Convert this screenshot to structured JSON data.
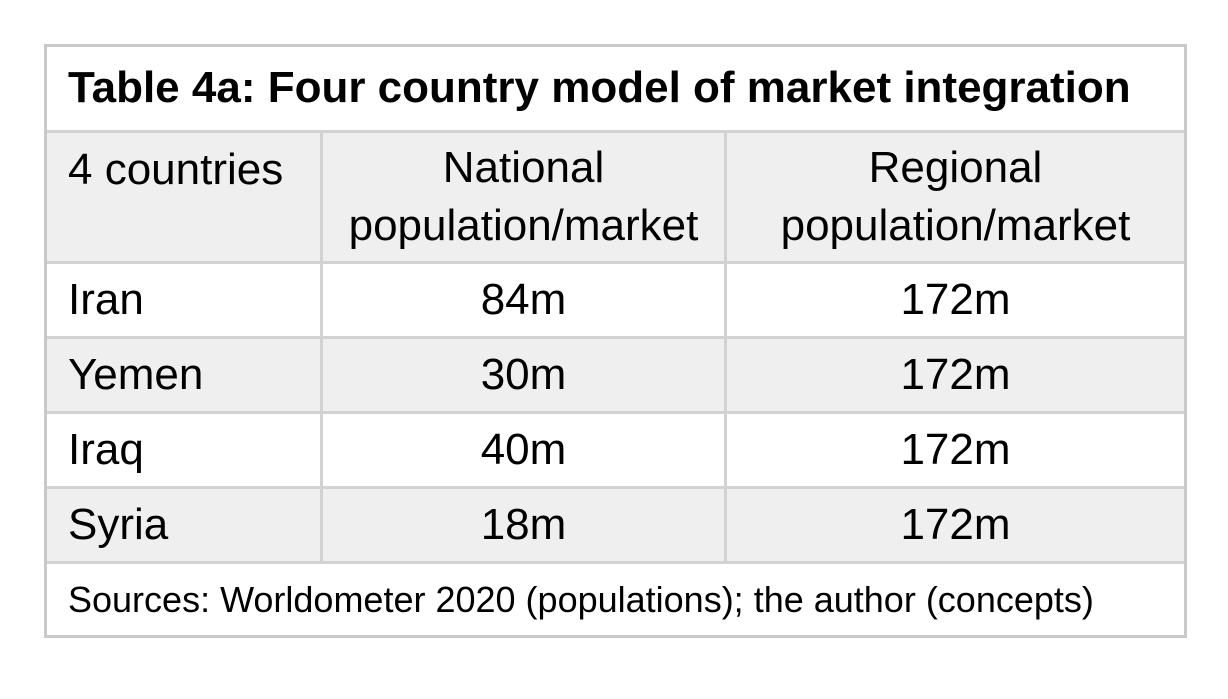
{
  "colors": {
    "background": "#ffffff",
    "table_border": "#c9c9c9",
    "grid_line": "#d2d2d2",
    "shaded_row_bg": "#efefef",
    "text": "#000000"
  },
  "table": {
    "title": "Table 4a: Four country model of market integration",
    "header": {
      "countries": "4 countries",
      "national_line1": "National",
      "national_line2": "population/market",
      "regional_line1": "Regional",
      "regional_line2": "population/market"
    },
    "rows": [
      {
        "country": "Iran",
        "national": "84m",
        "regional": "172m"
      },
      {
        "country": "Yemen",
        "national": "30m",
        "regional": "172m"
      },
      {
        "country": "Iraq",
        "national": "40m",
        "regional": "172m"
      },
      {
        "country": "Syria",
        "national": "18m",
        "regional": "172m"
      }
    ],
    "footer": "Sources: Worldometer 2020 (populations); the author (concepts)"
  },
  "chart_data": {
    "type": "table",
    "title": "Table 4a: Four country model of market integration",
    "columns": [
      "4 countries",
      "National population/market",
      "Regional population/market"
    ],
    "rows": [
      [
        "Iran",
        "84m",
        "172m"
      ],
      [
        "Yemen",
        "30m",
        "172m"
      ],
      [
        "Iraq",
        "40m",
        "172m"
      ],
      [
        "Syria",
        "18m",
        "172m"
      ]
    ],
    "footnote": "Sources: Worldometer 2020 (populations); the author (concepts)"
  }
}
